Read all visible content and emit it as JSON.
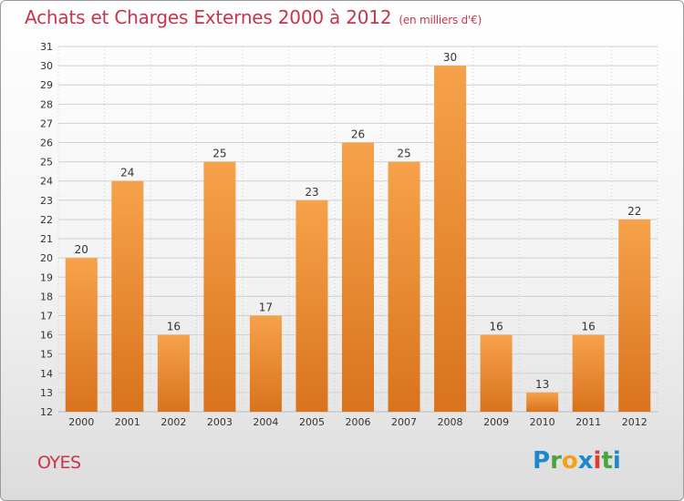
{
  "title": "Achats et Charges Externes 2000 à 2012",
  "subtitle": "(en milliers d'€)",
  "commune": "OYES",
  "logo": {
    "text": "Proxiti"
  },
  "colors": {
    "bar": "#f08a2c",
    "title": "#c8344a"
  },
  "chart_data": {
    "type": "bar",
    "title": "Achats et Charges Externes 2000 à 2012",
    "subtitle": "(en milliers d'€)",
    "categories": [
      "2000",
      "2001",
      "2002",
      "2003",
      "2004",
      "2005",
      "2006",
      "2007",
      "2008",
      "2009",
      "2010",
      "2011",
      "2012"
    ],
    "values": [
      20,
      24,
      16,
      25,
      17,
      23,
      26,
      25,
      30,
      16,
      13,
      16,
      22
    ],
    "ylim": [
      12,
      31
    ],
    "yticks": [
      12,
      13,
      14,
      15,
      16,
      17,
      18,
      19,
      20,
      21,
      22,
      23,
      24,
      25,
      26,
      27,
      28,
      29,
      30,
      31
    ],
    "grid": true
  }
}
